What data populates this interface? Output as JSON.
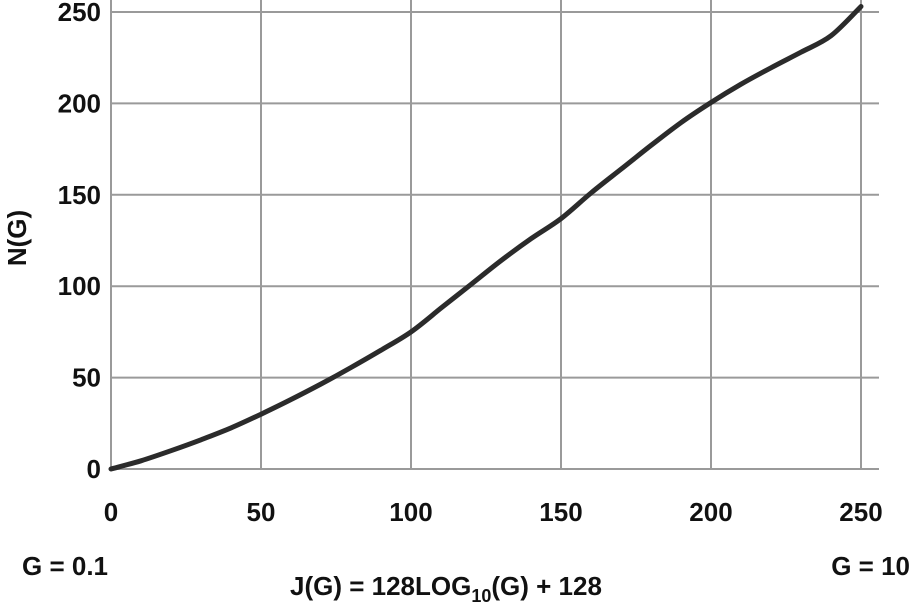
{
  "chart_data": {
    "type": "line",
    "title": "",
    "xlabel_parts": [
      "J(G) = 128LOG",
      "10",
      "(G) + 128"
    ],
    "ylabel": "N(G)",
    "xlim": [
      0,
      250
    ],
    "ylim": [
      0,
      250
    ],
    "x_ticks": [
      "0",
      "50",
      "100",
      "150",
      "200",
      "250"
    ],
    "y_ticks": [
      "0",
      "50",
      "100",
      "150",
      "200",
      "250"
    ],
    "grid": true,
    "annotations": {
      "left": "G = 0.1",
      "right": "G = 10"
    },
    "series": [
      {
        "x": [
          0,
          10,
          20,
          30,
          40,
          50,
          60,
          70,
          80,
          90,
          100,
          110,
          120,
          130,
          140,
          150,
          160,
          170,
          180,
          190,
          200,
          210,
          220,
          230,
          240,
          250
        ],
        "y": [
          0,
          4.5,
          10,
          16,
          22.5,
          30,
          38,
          46.5,
          55.5,
          65,
          75,
          88,
          101,
          114,
          126,
          137,
          151,
          164,
          177,
          189.5,
          200.5,
          210.5,
          219.5,
          228,
          237,
          253
        ]
      }
    ]
  }
}
